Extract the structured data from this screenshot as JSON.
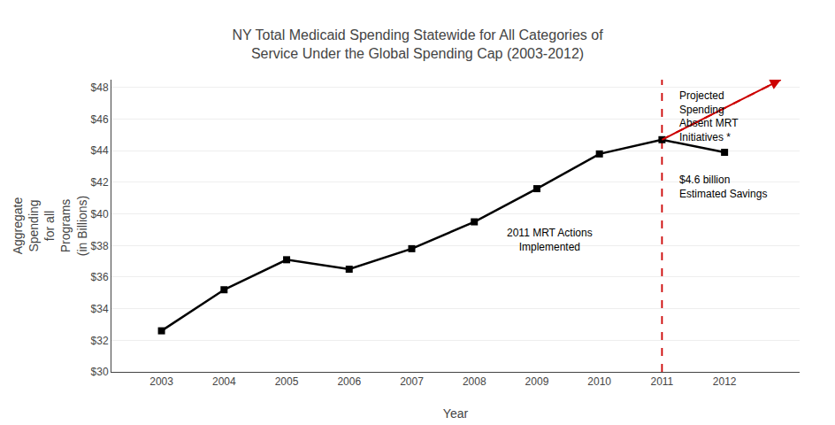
{
  "chart_data": {
    "type": "line",
    "title": "NY Total Medicaid Spending Statewide for All Categories of\nService Under the Global Spending Cap (2003-2012)",
    "xlabel": "Year",
    "ylabel": "Aggregate\nSpending\nfor all\nPrograms\n(in Billions)",
    "x": [
      2003,
      2004,
      2005,
      2006,
      2007,
      2008,
      2009,
      2010,
      2011,
      2012
    ],
    "series": [
      {
        "color": "#000000",
        "marker": "square",
        "line_style": "solid",
        "values": [
          32.6,
          35.2,
          37.1,
          36.5,
          37.8,
          39.5,
          41.6,
          43.8,
          44.7,
          43.9
        ]
      },
      {
        "color": "#cc0000",
        "marker": "arrow",
        "line_style": "dashed",
        "x": [
          2011,
          2012.9
        ],
        "values": [
          44.7,
          48.5
        ]
      }
    ],
    "vlines": [
      {
        "x": 2011,
        "color": "#cc0000",
        "line_style": "dashed"
      }
    ],
    "annotations": [
      {
        "x": 2009.2,
        "y": 39.3,
        "text": "2011 MRT Actions\nImplemented"
      },
      {
        "x": 2011.25,
        "y": 41.7,
        "text": "$4.6 billion\nEstimated Savings"
      },
      {
        "x": 2011.25,
        "y": 46.2,
        "text": "Projected\nSpending\nAbsent MRT\nInitiatives *"
      }
    ],
    "xlim": [
      2002.2,
      2013.2
    ],
    "xticks": [
      2003,
      2004,
      2005,
      2006,
      2007,
      2008,
      2009,
      2010,
      2011,
      2012
    ],
    "ylim": [
      30,
      48.5
    ],
    "yticks": [
      {
        "value": 30,
        "label": "$30"
      },
      {
        "value": 32,
        "label": "$32"
      },
      {
        "value": 34,
        "label": "$34"
      },
      {
        "value": 36,
        "label": "$36"
      },
      {
        "value": 38,
        "label": "$38"
      },
      {
        "value": 40,
        "label": "$40"
      },
      {
        "value": 42,
        "label": "$42"
      },
      {
        "value": 44,
        "label": "$44"
      },
      {
        "value": 46,
        "label": "$46"
      },
      {
        "value": 48,
        "label": "$48"
      }
    ],
    "grid": "y",
    "legend": false
  }
}
